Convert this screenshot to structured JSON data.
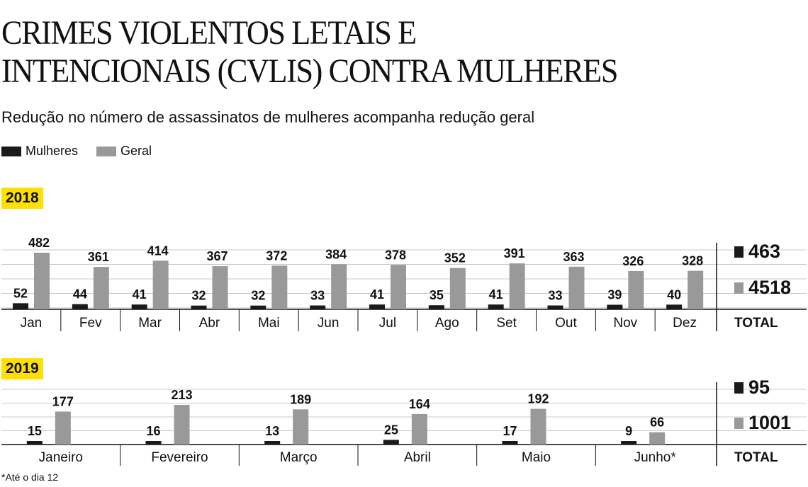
{
  "title_line1": "CRIMES VIOLENTOS LETAIS E",
  "title_line2": "INTENCIONAIS (CVLIS) CONTRA MULHERES",
  "subtitle": "Redução no número de assassinatos de mulheres acompanha redução geral",
  "legend": [
    {
      "label": "Mulheres",
      "color": "#1a1a1a"
    },
    {
      "label": "Geral",
      "color": "#999999"
    }
  ],
  "total_label": "TOTAL",
  "footnote": "*Até o dia 12",
  "chart_data": [
    {
      "type": "bar",
      "year": "2018",
      "categories": [
        "Jan",
        "Fev",
        "Mar",
        "Abr",
        "Mai",
        "Jun",
        "Jul",
        "Ago",
        "Set",
        "Out",
        "Nov",
        "Dez"
      ],
      "series": [
        {
          "name": "Mulheres",
          "color": "#1a1a1a",
          "values": [
            52,
            44,
            41,
            32,
            32,
            33,
            41,
            35,
            41,
            33,
            39,
            40
          ]
        },
        {
          "name": "Geral",
          "color": "#999999",
          "values": [
            482,
            361,
            414,
            367,
            372,
            384,
            378,
            352,
            391,
            363,
            326,
            328
          ]
        }
      ],
      "totals": {
        "Mulheres": "463",
        "Geral": "4518"
      },
      "ylim": [
        0,
        482
      ]
    },
    {
      "type": "bar",
      "year": "2019",
      "categories": [
        "Janeiro",
        "Fevereiro",
        "Março",
        "Abril",
        "Maio",
        "Junho*"
      ],
      "series": [
        {
          "name": "Mulheres",
          "color": "#1a1a1a",
          "values": [
            15,
            16,
            13,
            25,
            17,
            9
          ]
        },
        {
          "name": "Geral",
          "color": "#999999",
          "values": [
            177,
            213,
            189,
            164,
            192,
            66
          ]
        }
      ],
      "totals": {
        "Mulheres": "95",
        "Geral": "1001"
      },
      "ylim": [
        0,
        213
      ]
    }
  ]
}
